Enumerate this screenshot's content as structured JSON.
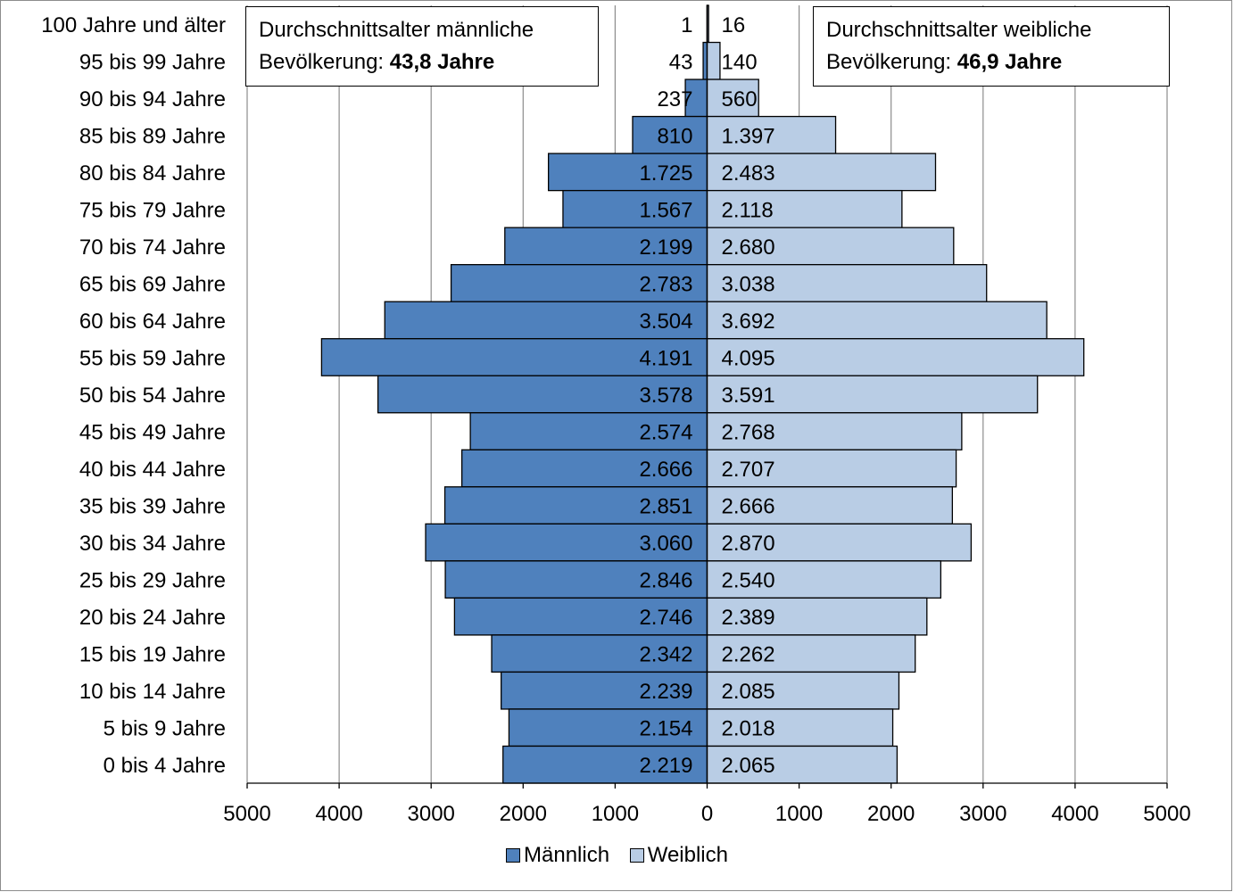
{
  "chart_data": {
    "type": "bar",
    "orientation": "horizontal",
    "categories": [
      "100 Jahre und älter",
      "95 bis 99 Jahre",
      "90 bis 94 Jahre",
      "85 bis 89 Jahre",
      "80 bis 84 Jahre",
      "75 bis 79 Jahre",
      "70 bis 74 Jahre",
      "65 bis 69 Jahre",
      "60 bis 64 Jahre",
      "55 bis 59 Jahre",
      "50 bis 54 Jahre",
      "45 bis 49 Jahre",
      "40 bis 44 Jahre",
      "35 bis 39 Jahre",
      "30 bis 34 Jahre",
      "25 bis 29 Jahre",
      "20 bis 24 Jahre",
      "15 bis 19 Jahre",
      "10 bis 14 Jahre",
      "5 bis 9 Jahre",
      "0 bis 4 Jahre"
    ],
    "series": [
      {
        "name": "Männlich",
        "color": "#4f81bd",
        "values": [
          1,
          43,
          237,
          810,
          1725,
          1567,
          2199,
          2783,
          3504,
          4191,
          3578,
          2574,
          2666,
          2851,
          3060,
          2846,
          2746,
          2342,
          2239,
          2154,
          2219
        ],
        "labels": [
          "1",
          "43",
          "237",
          "810",
          "1.725",
          "1.567",
          "2.199",
          "2.783",
          "3.504",
          "4.191",
          "3.578",
          "2.574",
          "2.666",
          "2.851",
          "3.060",
          "2.846",
          "2.746",
          "2.342",
          "2.239",
          "2.154",
          "2.219"
        ]
      },
      {
        "name": "Weiblich",
        "color": "#b9cde5",
        "values": [
          16,
          140,
          560,
          1397,
          2483,
          2118,
          2680,
          3038,
          3692,
          4095,
          3591,
          2768,
          2707,
          2666,
          2870,
          2540,
          2389,
          2262,
          2085,
          2018,
          2065
        ],
        "labels": [
          "16",
          "140",
          "560",
          "1.397",
          "2.483",
          "2.118",
          "2.680",
          "3.038",
          "3.692",
          "4.095",
          "3.591",
          "2.768",
          "2.707",
          "2.666",
          "2.870",
          "2.540",
          "2.389",
          "2.262",
          "2.085",
          "2.018",
          "2.065"
        ]
      }
    ],
    "xlim": [
      -5000,
      5000
    ],
    "xticks": [
      -5000,
      -4000,
      -3000,
      -2000,
      -1000,
      0,
      1000,
      2000,
      3000,
      4000,
      5000
    ],
    "xtick_labels": [
      "5000",
      "4000",
      "3000",
      "2000",
      "1000",
      "0",
      "1000",
      "2000",
      "3000",
      "4000",
      "5000"
    ],
    "grid": true,
    "legend_position": "bottom"
  },
  "annotations": {
    "male": {
      "line1": "Durchschnittsalter männliche",
      "line2_prefix": "Bevölkerung: ",
      "line2_value": "43,8 Jahre"
    },
    "female": {
      "line1": "Durchschnittsalter weibliche",
      "line2_prefix": "Bevölkerung: ",
      "line2_value": "46,9 Jahre"
    }
  },
  "legend": {
    "male": "Männlich",
    "female": "Weiblich"
  }
}
